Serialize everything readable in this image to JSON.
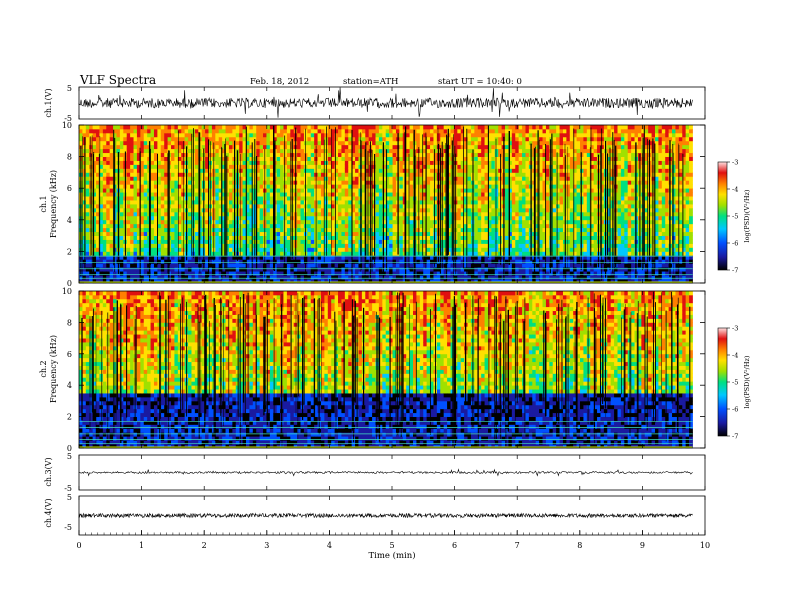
{
  "header": {
    "title": "VLF  Spectra",
    "date": "Feb. 18, 2012",
    "station": "station=ATH",
    "start": "start  UT =    10:40: 0"
  },
  "chart_data": [
    {
      "type": "line",
      "panel": "ch1-waveform",
      "ylabel": "ch.1(V)",
      "yticks": [
        "5",
        "-5"
      ],
      "ylim": [
        -5,
        5
      ],
      "xlim": [
        0,
        10
      ],
      "data_span_min": [
        0,
        9.8
      ]
    },
    {
      "type": "heatmap",
      "panel": "ch1-spectrogram",
      "ylabel": "ch.1 Frequency (kHz)",
      "ylabel_lines": [
        "ch.1",
        "Frequency (kHz)"
      ],
      "yticks": [
        "0",
        "2",
        "4",
        "6",
        "8",
        "10"
      ],
      "ylim": [
        0,
        10
      ],
      "xlim": [
        0,
        10
      ],
      "colorbar": {
        "label": "log(PSD)(V²/Hz)",
        "ticks": [
          "-3",
          "-4",
          "-5",
          "-6",
          "-7"
        ],
        "range": [
          -7,
          -3
        ]
      },
      "noise_floor_band_khz": [
        0,
        1.8
      ],
      "sferic_band_khz": [
        2,
        10
      ]
    },
    {
      "type": "heatmap",
      "panel": "ch2-spectrogram",
      "ylabel": "ch.2 Frequency (kHz)",
      "ylabel_lines": [
        "ch.2",
        "Frequency (kHz)"
      ],
      "yticks": [
        "0",
        "2",
        "4",
        "6",
        "8",
        "10"
      ],
      "ylim": [
        0,
        10
      ],
      "xlim": [
        0,
        10
      ],
      "colorbar": {
        "label": "log(PSD)(V²/Hz)",
        "ticks": [
          "-3",
          "-4",
          "-5",
          "-6",
          "-7"
        ],
        "range": [
          -7,
          -3
        ]
      },
      "noise_floor_band_khz": [
        0,
        3.5
      ],
      "sferic_band_khz": [
        3.5,
        10
      ]
    },
    {
      "type": "line",
      "panel": "ch3-waveform",
      "ylabel": "ch.3(V)",
      "yticks": [
        "5",
        "-5"
      ],
      "ylim": [
        -5,
        5
      ],
      "xlim": [
        0,
        10
      ]
    },
    {
      "type": "line",
      "panel": "ch4-waveform",
      "ylabel": "ch.4(V)",
      "yticks": [
        "5",
        "-5"
      ],
      "ylim": [
        -5,
        5
      ],
      "xlim": [
        0,
        10
      ],
      "xlabel": "Time  (min)",
      "xticks": [
        "0",
        "1",
        "2",
        "3",
        "4",
        "5",
        "6",
        "7",
        "8",
        "9",
        "10"
      ]
    }
  ],
  "colors": {
    "psd_scale": [
      "#000000",
      "#1a1aa0",
      "#0050ff",
      "#00c8ff",
      "#00e080",
      "#a0e000",
      "#ffe000",
      "#ff8000",
      "#e01010",
      "#ffffff"
    ]
  }
}
